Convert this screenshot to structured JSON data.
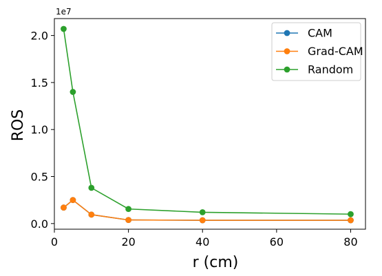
{
  "chart_data": {
    "type": "line",
    "xlabel": "r (cm)",
    "ylabel": "ROS",
    "offset_text": "1e7",
    "xlim": [
      0,
      84
    ],
    "ylim": [
      -0.06,
      2.18
    ],
    "x_ticks": [
      0,
      20,
      40,
      60,
      80
    ],
    "x_tick_labels": [
      "0",
      "20",
      "40",
      "60",
      "80"
    ],
    "y_ticks": [
      0.0,
      0.5,
      1.0,
      1.5,
      2.0
    ],
    "y_tick_labels": [
      "0.0",
      "0.5",
      "1.0",
      "1.5",
      "2.0"
    ],
    "grid": false,
    "legend_position": "top-right",
    "x": [
      2.5,
      5,
      10,
      20,
      40,
      80
    ],
    "series": [
      {
        "name": "CAM",
        "color": "#1f77b4",
        "values": [
          0.17,
          0.25,
          0.095,
          0.038,
          0.035,
          0.035
        ]
      },
      {
        "name": "Grad-CAM",
        "color": "#ff7f0e",
        "values": [
          0.17,
          0.25,
          0.095,
          0.038,
          0.035,
          0.035
        ]
      },
      {
        "name": "Random",
        "color": "#2ca02c",
        "values": [
          2.07,
          1.4,
          0.38,
          0.155,
          0.12,
          0.1
        ]
      }
    ]
  }
}
